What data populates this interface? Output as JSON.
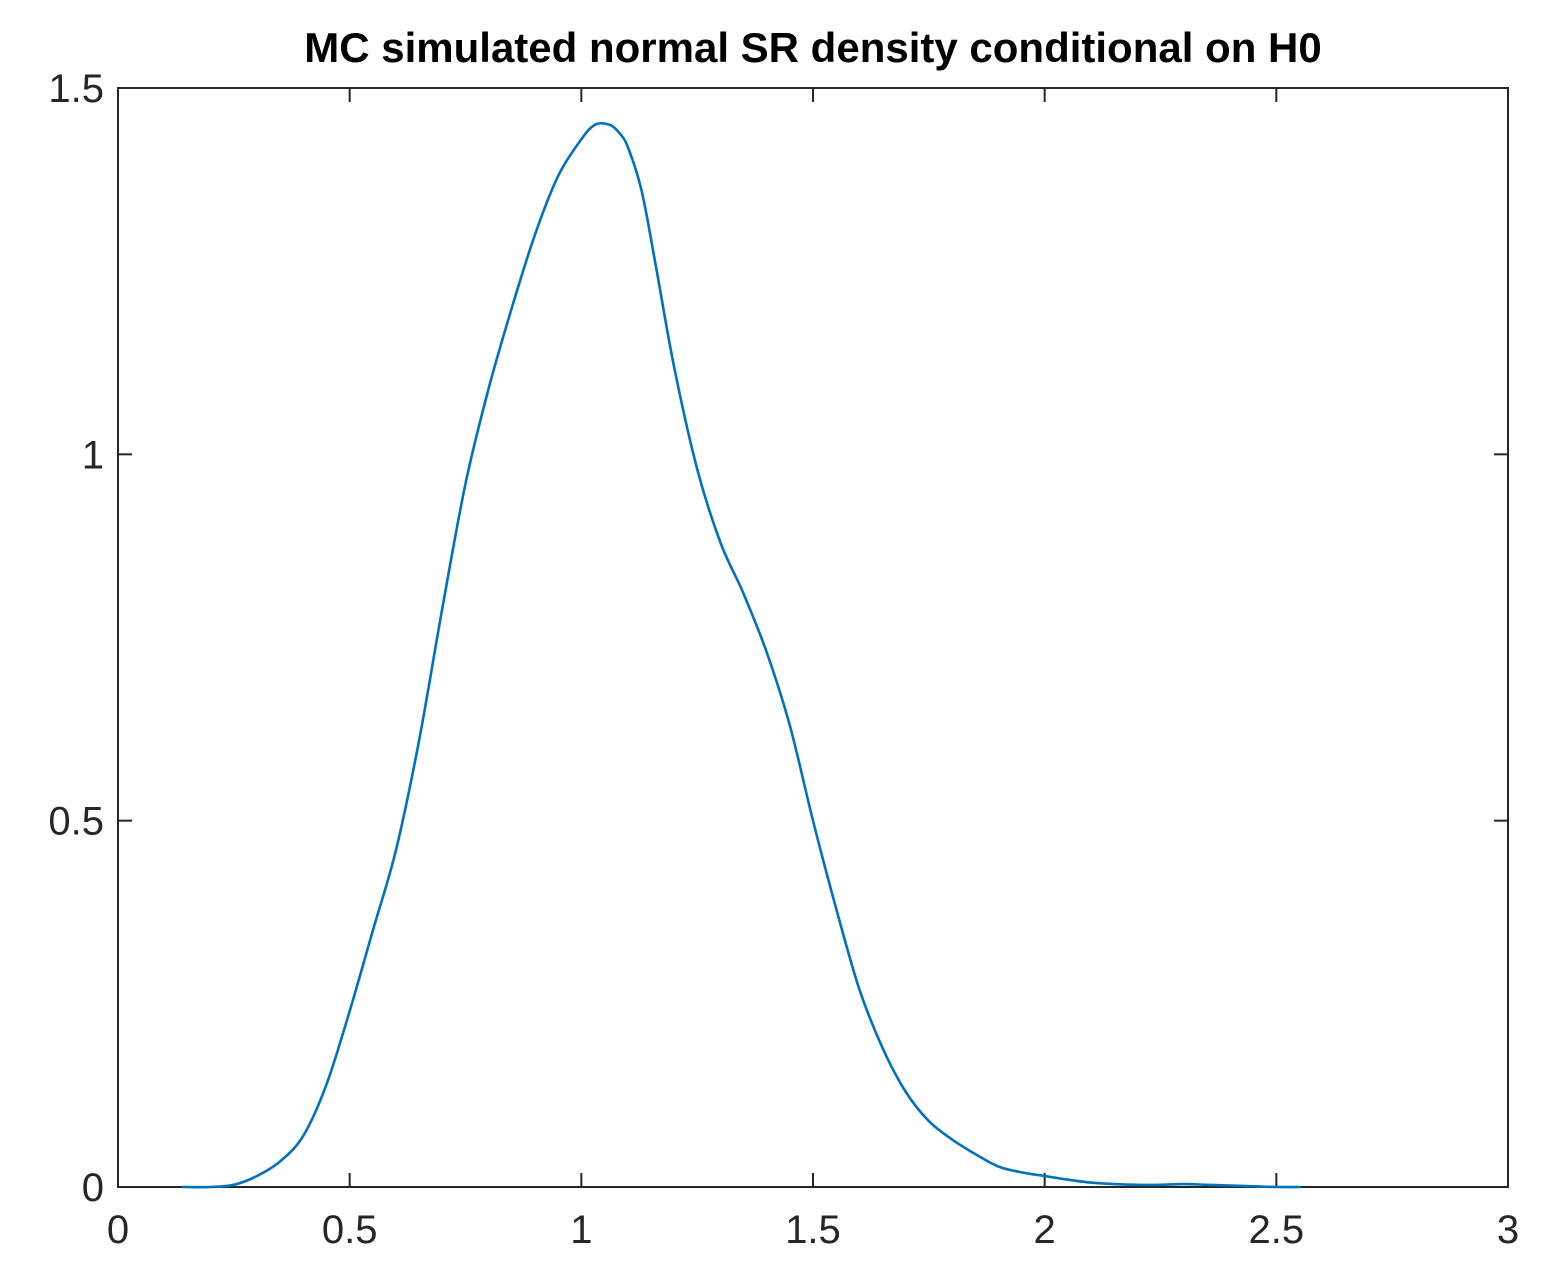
{
  "chart_data": {
    "type": "line",
    "title": "MC simulated normal SR density conditional on H0",
    "xlabel": "",
    "ylabel": "",
    "xlim": [
      0,
      3
    ],
    "ylim": [
      0,
      1.5
    ],
    "x_ticks": [
      "0",
      "0.5",
      "1",
      "1.5",
      "2",
      "2.5",
      "3"
    ],
    "y_ticks": [
      "0",
      "0.5",
      "1",
      "1.5"
    ],
    "grid": false,
    "legend": "none",
    "series": [
      {
        "color": "#0072BD",
        "x": [
          0.14,
          0.2,
          0.25,
          0.3,
          0.35,
          0.4,
          0.45,
          0.5,
          0.55,
          0.6,
          0.65,
          0.7,
          0.75,
          0.8,
          0.85,
          0.9,
          0.95,
          1.0,
          1.03,
          1.06,
          1.08,
          1.1,
          1.13,
          1.16,
          1.2,
          1.25,
          1.3,
          1.35,
          1.4,
          1.45,
          1.5,
          1.55,
          1.6,
          1.65,
          1.7,
          1.75,
          1.8,
          1.85,
          1.9,
          1.95,
          2.0,
          2.05,
          2.1,
          2.15,
          2.2,
          2.25,
          2.3,
          2.35,
          2.4,
          2.45,
          2.5,
          2.55
        ],
        "y": [
          0.0,
          0.0,
          0.003,
          0.015,
          0.035,
          0.07,
          0.14,
          0.24,
          0.35,
          0.46,
          0.61,
          0.79,
          0.96,
          1.09,
          1.2,
          1.3,
          1.38,
          1.43,
          1.45,
          1.45,
          1.44,
          1.42,
          1.36,
          1.26,
          1.12,
          0.98,
          0.88,
          0.81,
          0.73,
          0.63,
          0.5,
          0.38,
          0.27,
          0.19,
          0.13,
          0.09,
          0.065,
          0.045,
          0.028,
          0.02,
          0.015,
          0.01,
          0.006,
          0.004,
          0.003,
          0.003,
          0.004,
          0.003,
          0.002,
          0.001,
          0.0,
          0.0
        ]
      }
    ]
  }
}
